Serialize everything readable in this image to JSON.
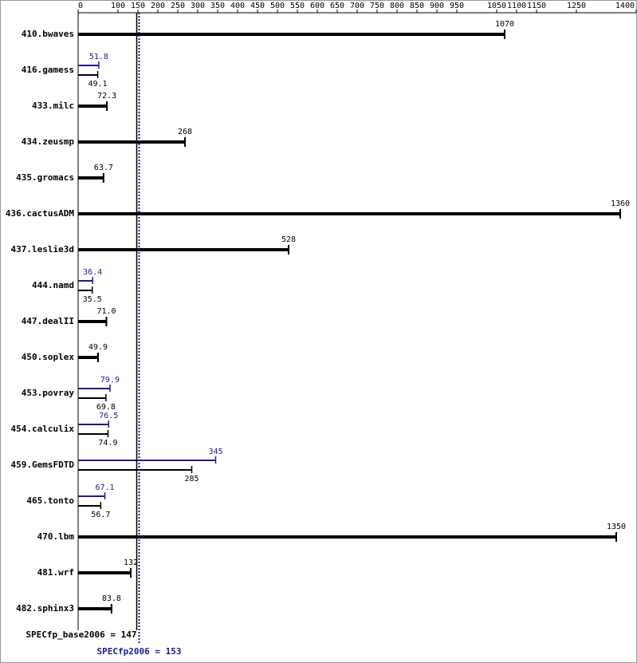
{
  "chart_data": {
    "type": "hbar",
    "categories": [
      "410.bwaves",
      "416.gamess",
      "433.milc",
      "434.zeusmp",
      "435.gromacs",
      "436.cactusADM",
      "437.leslie3d",
      "444.namd",
      "447.dealII",
      "450.soplex",
      "453.povray",
      "454.calculix",
      "459.GemsFDTD",
      "465.tonto",
      "470.lbm",
      "481.wrf",
      "482.sphinx3"
    ],
    "series": [
      {
        "color": "#000000",
        "values": [
          1070,
          49.1,
          72.3,
          268,
          63.7,
          1360,
          528,
          35.5,
          71.0,
          49.9,
          69.8,
          74.9,
          285,
          56.7,
          1350,
          132,
          83.8
        ],
        "value_labels": [
          "1070",
          "49.1",
          "72.3",
          "268",
          "63.7",
          "1360",
          "528",
          "35.5",
          "71.0",
          "49.9",
          "69.8",
          "74.9",
          "285",
          "56.7",
          "1350",
          "132",
          "83.8"
        ]
      },
      {
        "color": "#1c1c8c",
        "values": [
          null,
          51.8,
          null,
          null,
          null,
          null,
          null,
          36.4,
          null,
          null,
          79.9,
          76.5,
          345,
          67.1,
          null,
          null,
          null
        ],
        "value_labels": [
          null,
          "51.8",
          null,
          null,
          null,
          null,
          null,
          "36.4",
          null,
          null,
          "79.9",
          "76.5",
          "345",
          "67.1",
          null,
          null,
          null
        ]
      }
    ],
    "xlim": [
      0,
      1400
    ],
    "xticks": [
      0,
      100,
      150,
      200,
      250,
      300,
      350,
      400,
      450,
      500,
      550,
      600,
      650,
      700,
      750,
      800,
      850,
      900,
      950,
      1050,
      1100,
      1150,
      1250,
      1400
    ],
    "reference_lines": [
      {
        "text": "SPECfp_base2006 = 147",
        "value": 147,
        "color": "#000000",
        "style": "solid"
      },
      {
        "text": "SPECfp2006 = 153",
        "value": 153,
        "color": "#1c1c8c",
        "style": "dotted"
      }
    ]
  }
}
